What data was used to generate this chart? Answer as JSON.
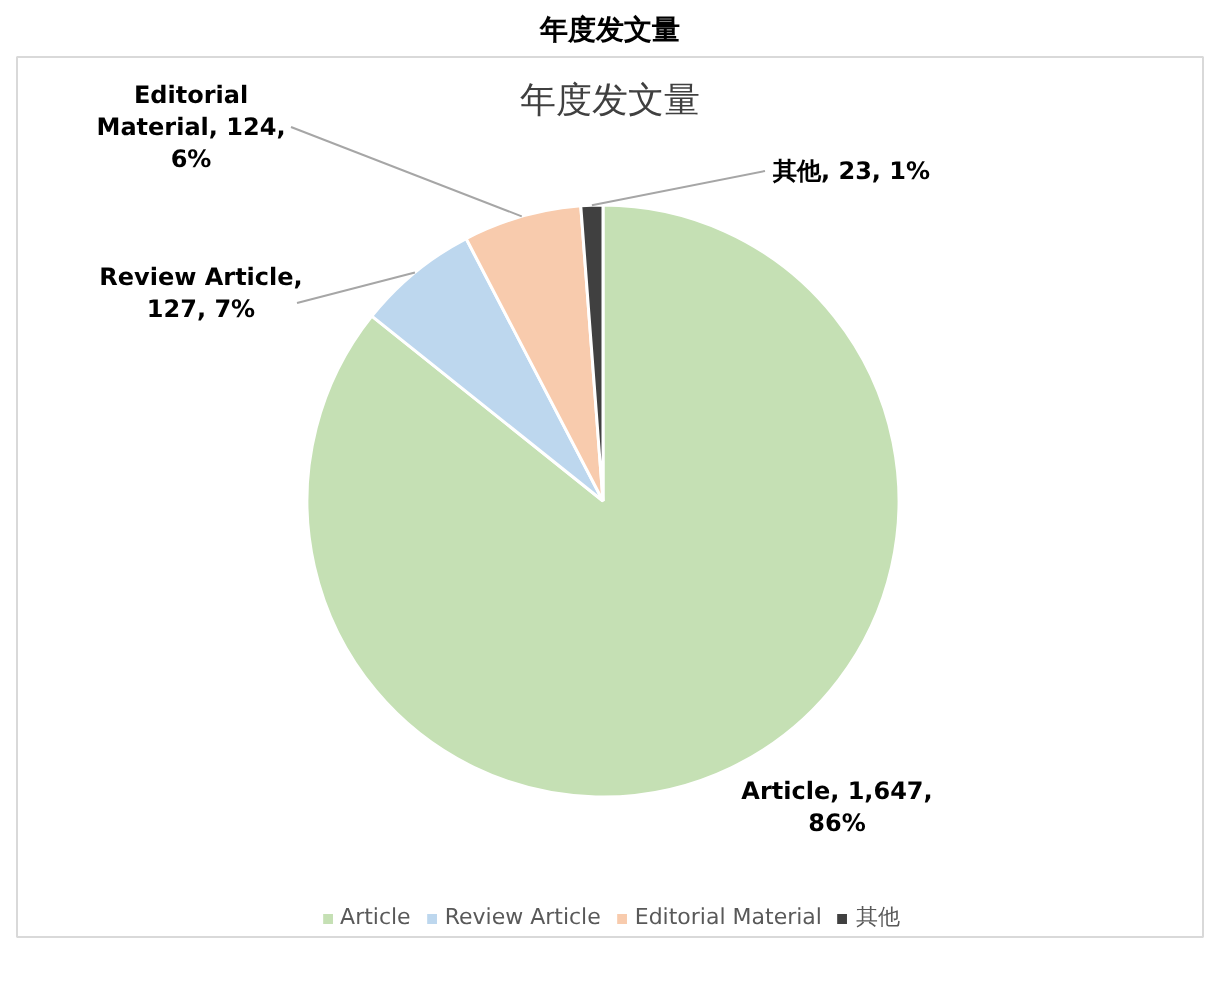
{
  "chart_data": {
    "type": "pie",
    "title": "年度发文量",
    "subtitle": "年度发文量",
    "categories": [
      "Article",
      "Review Article",
      "Editorial Material",
      "其他"
    ],
    "values": [
      1647,
      127,
      124,
      23
    ],
    "colors": [
      "#c5e0b4",
      "#bdd7ee",
      "#f8cbad",
      "#404040"
    ],
    "value_labels": [
      "Article, 1,647, 86%",
      "Review Article, 127, 7%",
      "Editorial Material, 124, 6%",
      "其他, 23, 1%"
    ],
    "legend": "bottom"
  }
}
